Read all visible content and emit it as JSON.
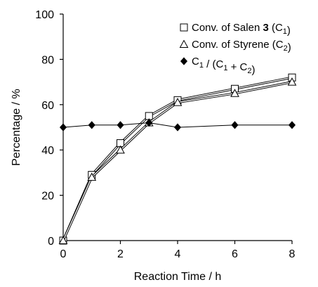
{
  "chart_data": {
    "type": "line",
    "xlabel": "Reaction Time / h",
    "ylabel": "Percentage / %",
    "xlim": [
      0,
      8
    ],
    "ylim": [
      0,
      100
    ],
    "xticks": [
      "0",
      "2",
      "4",
      "6",
      "8"
    ],
    "yticks": [
      "0",
      "20",
      "40",
      "60",
      "80",
      "100"
    ],
    "grid": false,
    "legend_position": "top-right",
    "x": [
      0,
      1,
      2,
      3,
      4,
      6,
      8
    ],
    "series": [
      {
        "name": "Conv. of Salen 3 (C1)",
        "legend": {
          "pre": "Conv. of Salen ",
          "bold": "3",
          "mid": " (C",
          "sub": "1",
          "post": ")"
        },
        "marker": "square-open",
        "values": [
          0,
          29,
          43,
          55,
          62,
          67,
          72
        ]
      },
      {
        "name": "Conv. of Styrene (C2)",
        "legend": {
          "pre": "Conv. of Styrene (C",
          "sub": "2",
          "post": ")"
        },
        "marker": "triangle-open",
        "values": [
          0,
          28,
          40,
          52,
          61,
          65,
          70
        ]
      },
      {
        "name": "C1 / (C1 + C2)",
        "legend": {
          "parts": [
            [
              "C",
              ""
            ],
            [
              "1",
              "sub"
            ],
            [
              " / (C",
              ""
            ],
            [
              "1",
              "sub"
            ],
            [
              " + C",
              ""
            ],
            [
              "2",
              "sub"
            ],
            [
              ")",
              ""
            ]
          ]
        },
        "marker": "diamond-filled",
        "values": [
          50,
          51,
          51,
          52,
          50,
          51,
          51
        ]
      }
    ]
  }
}
